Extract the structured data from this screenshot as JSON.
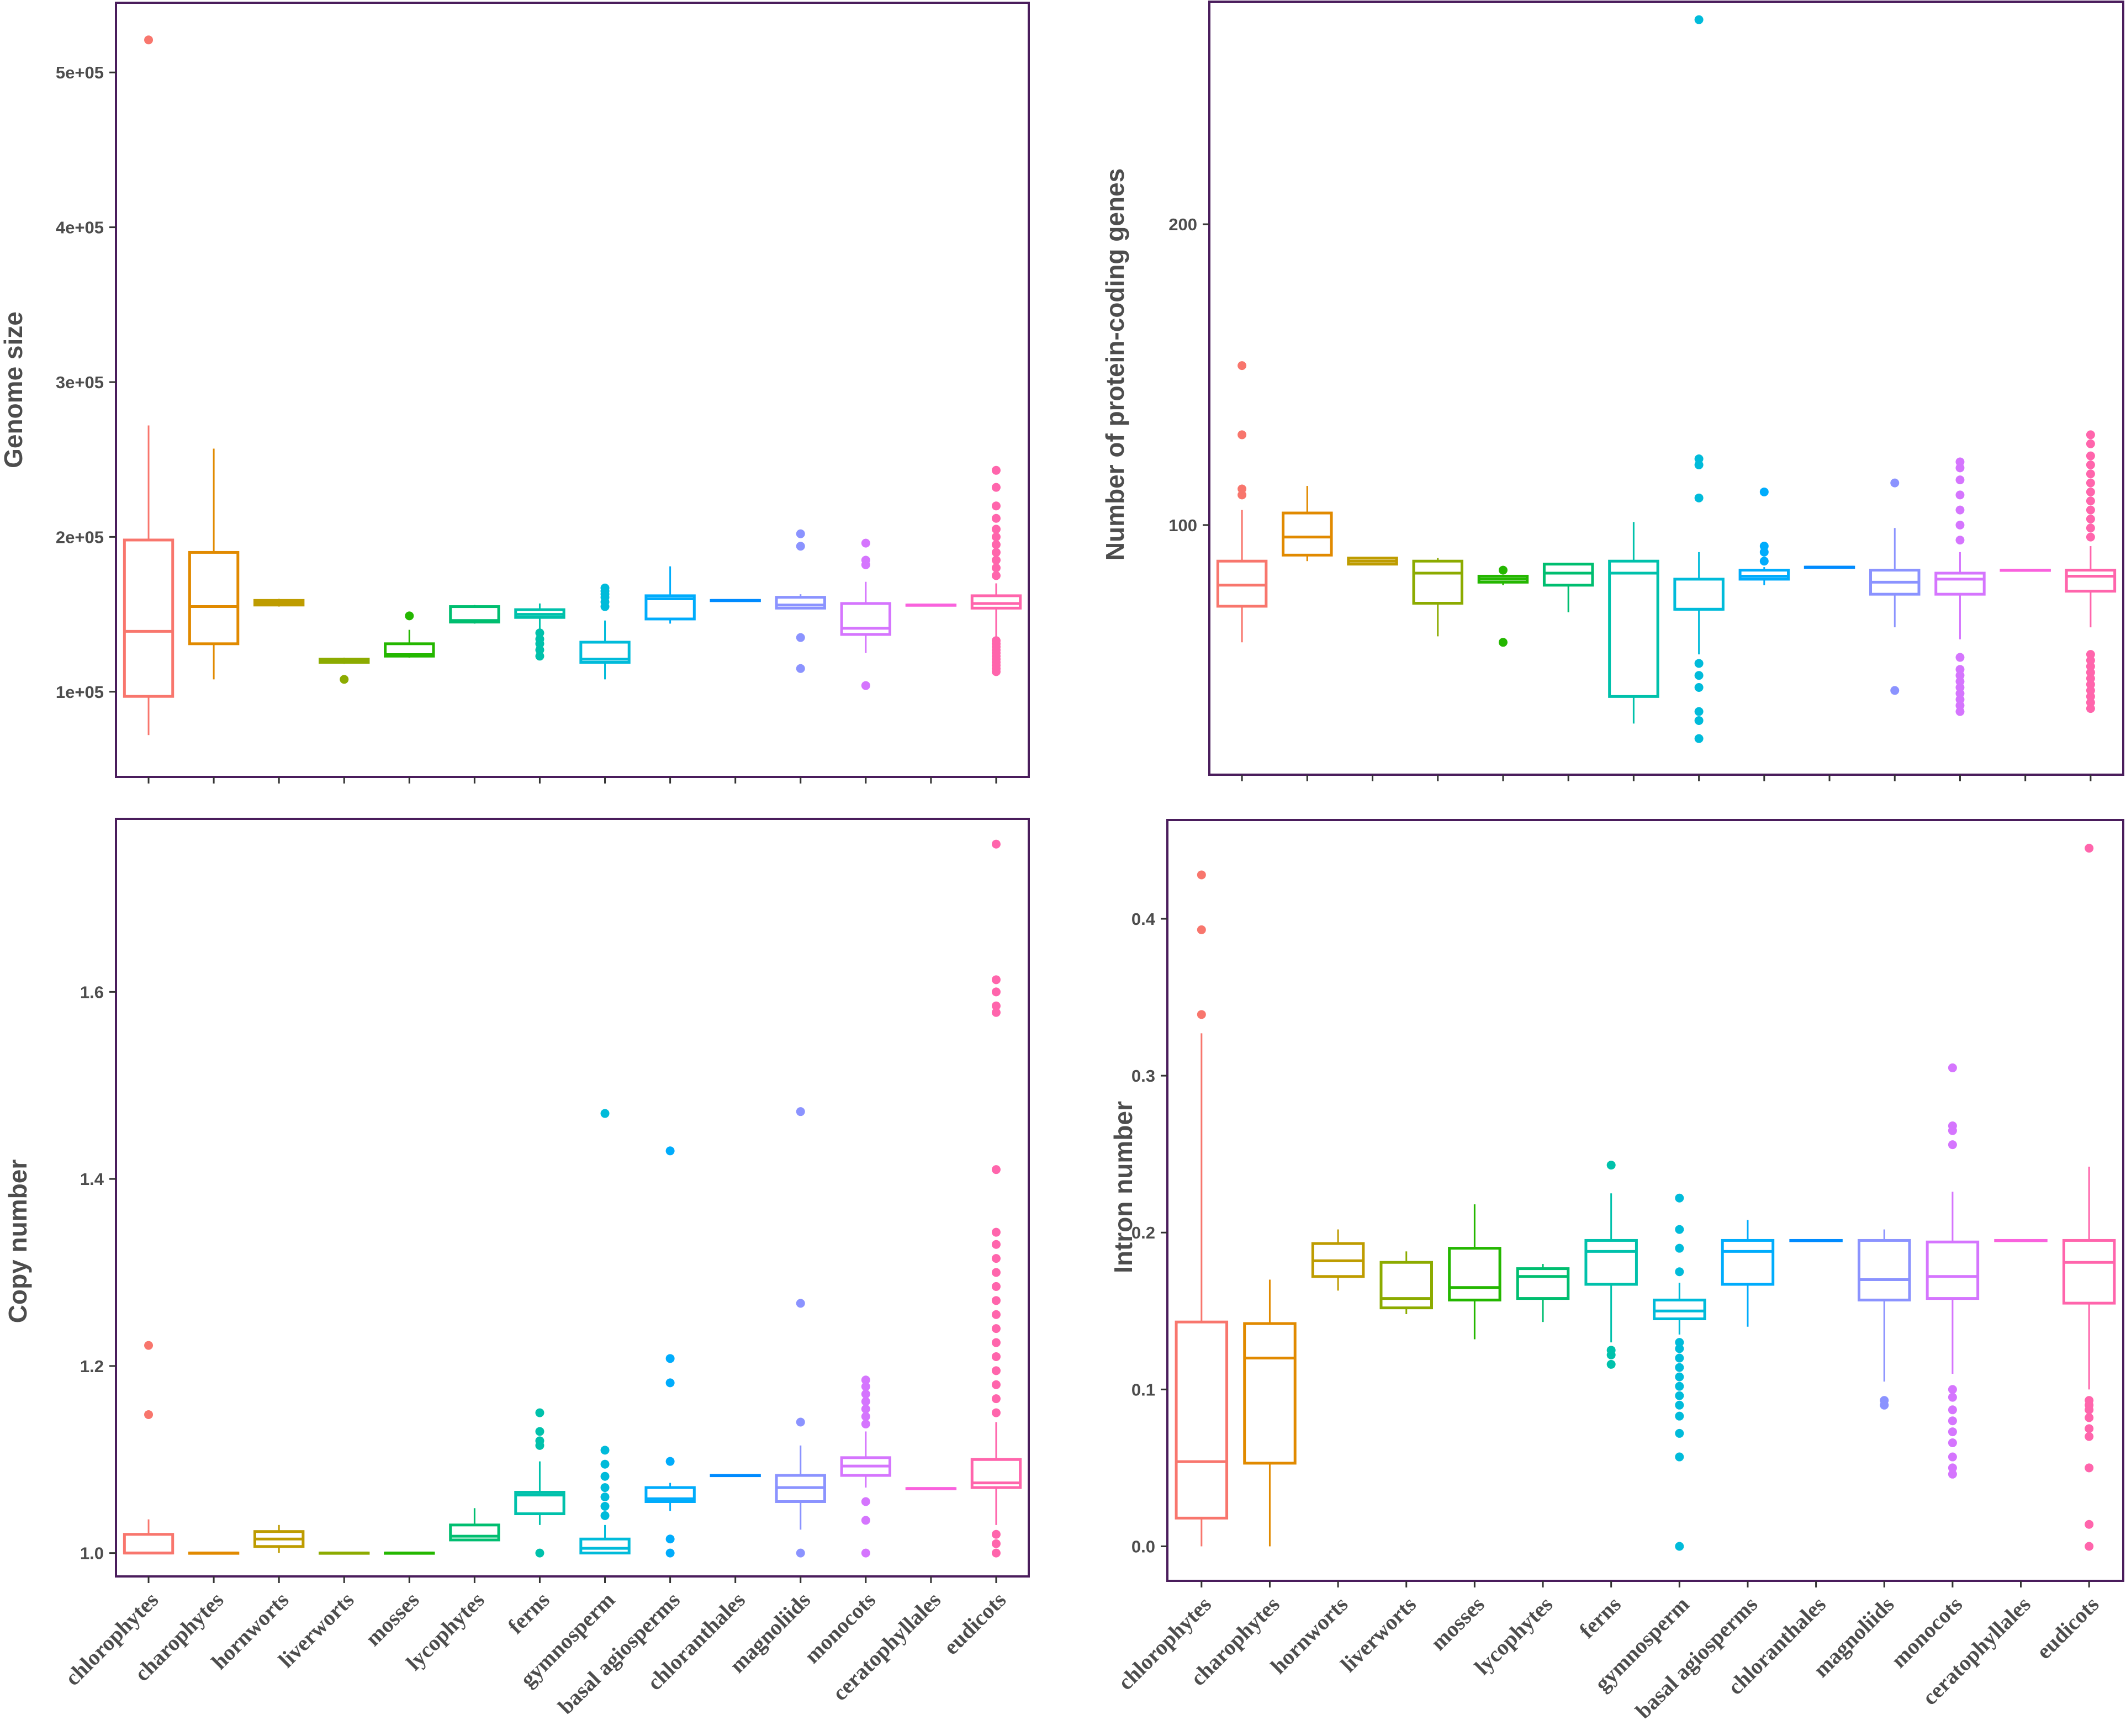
{
  "chart_data": [
    {
      "type": "box",
      "title": "",
      "xlabel": "",
      "ylabel": "Genome size",
      "ylim": [
        45000,
        545000
      ],
      "yticks": [
        100000,
        200000,
        300000,
        400000,
        500000
      ],
      "ytick_labels": [
        "1e+05",
        "2e+05",
        "3e+05",
        "4e+05",
        "5e+05"
      ],
      "categories": [
        "chlorophytes",
        "charophytes",
        "hornworts",
        "liverworts",
        "mosses",
        "lycophytes",
        "ferns",
        "gymnosperm",
        "basal agiosperms",
        "chloranthales",
        "magnoliids",
        "monocots",
        "ceratophyllales",
        "eudicots"
      ],
      "colors": [
        "#F8766D",
        "#E18A00",
        "#BE9C00",
        "#8CAB00",
        "#24B700",
        "#00BE70",
        "#00C1AB",
        "#00BBDA",
        "#00ACFC",
        "#008BFF",
        "#8B93FF",
        "#D575FE",
        "#F962DD",
        "#FF65AC"
      ],
      "boxes": [
        {
          "whislo": 72000,
          "q1": 97000,
          "med": 139000,
          "q3": 198000,
          "whishi": 272000,
          "outliers": [
            521000
          ]
        },
        {
          "whislo": 108000,
          "q1": 131000,
          "med": 155000,
          "q3": 190000,
          "whishi": 257000,
          "outliers": []
        },
        {
          "whislo": 155000,
          "q1": 156000,
          "med": 157500,
          "q3": 159000,
          "whishi": 160000,
          "outliers": []
        },
        {
          "whislo": 118000,
          "q1": 119000,
          "med": 120000,
          "q3": 121000,
          "whishi": 122000,
          "outliers": [
            108000
          ]
        },
        {
          "whislo": 122000,
          "q1": 123000,
          "med": 124000,
          "q3": 131000,
          "whishi": 140000,
          "outliers": [
            149000
          ]
        },
        {
          "whislo": 144000,
          "q1": 145000,
          "med": 146000,
          "q3": 155000,
          "whishi": 156000,
          "outliers": []
        },
        {
          "whislo": 138000,
          "q1": 148000,
          "med": 150000,
          "q3": 153000,
          "whishi": 157000,
          "outliers": [
            123000,
            127000,
            131000,
            134000,
            138000
          ]
        },
        {
          "whislo": 108000,
          "q1": 119000,
          "med": 121000,
          "q3": 132000,
          "whishi": 146000,
          "outliers": [
            155000,
            158000,
            161000,
            163000,
            165000,
            167000
          ]
        },
        {
          "whislo": 144000,
          "q1": 147000,
          "med": 160000,
          "q3": 162000,
          "whishi": 181000,
          "outliers": []
        },
        {
          "whislo": 159000,
          "q1": 159000,
          "med": 159000,
          "q3": 159000,
          "whishi": 159000,
          "outliers": []
        },
        {
          "whislo": 154000,
          "q1": 154000,
          "med": 156000,
          "q3": 161000,
          "whishi": 163000,
          "outliers": [
            115000,
            135000,
            194000,
            202000
          ]
        },
        {
          "whislo": 125000,
          "q1": 137000,
          "med": 141000,
          "q3": 157000,
          "whishi": 171000,
          "outliers": [
            104000,
            182000,
            185000,
            196000
          ]
        },
        {
          "whislo": 156000,
          "q1": 156000,
          "med": 156000,
          "q3": 156000,
          "whishi": 156000,
          "outliers": []
        },
        {
          "whislo": 135000,
          "q1": 154000,
          "med": 157000,
          "q3": 162000,
          "whishi": 170000,
          "outliers": [
            113000,
            115000,
            117000,
            119000,
            121000,
            123000,
            125000,
            127000,
            129000,
            131000,
            133000,
            175000,
            180000,
            185000,
            190000,
            195000,
            200000,
            205000,
            212000,
            220000,
            232000,
            243000
          ]
        }
      ]
    },
    {
      "type": "box",
      "title": "",
      "xlabel": "",
      "ylabel": "Number of protein-coding genes",
      "ylim": [
        17,
        274
      ],
      "yticks": [
        100,
        200
      ],
      "ytick_labels": [
        "100",
        "200"
      ],
      "categories": [
        "chlorophytes",
        "charophytes",
        "hornworts",
        "liverworts",
        "mosses",
        "lycophytes",
        "ferns",
        "gymnosperm",
        "basal agiosperms",
        "chloranthales",
        "magnoliids",
        "monocots",
        "ceratophyllales",
        "eudicots"
      ],
      "colors": [
        "#F8766D",
        "#E18A00",
        "#BE9C00",
        "#8CAB00",
        "#24B700",
        "#00BE70",
        "#00C1AB",
        "#00BBDA",
        "#00ACFC",
        "#008BFF",
        "#8B93FF",
        "#D575FE",
        "#F962DD",
        "#FF65AC"
      ],
      "boxes": [
        {
          "whislo": 61,
          "q1": 73,
          "med": 80,
          "q3": 88,
          "whishi": 105,
          "outliers": [
            110,
            112,
            130,
            153
          ]
        },
        {
          "whislo": 88,
          "q1": 90,
          "med": 96,
          "q3": 104,
          "whishi": 113,
          "outliers": []
        },
        {
          "whislo": 87,
          "q1": 87,
          "med": 88,
          "q3": 89,
          "whishi": 89,
          "outliers": []
        },
        {
          "whislo": 63,
          "q1": 74,
          "med": 84,
          "q3": 88,
          "whishi": 89,
          "outliers": []
        },
        {
          "whislo": 80,
          "q1": 81,
          "med": 82,
          "q3": 83,
          "whishi": 83,
          "outliers": [
            61,
            85
          ]
        },
        {
          "whislo": 71,
          "q1": 80,
          "med": 84,
          "q3": 87,
          "whishi": 87,
          "outliers": []
        },
        {
          "whislo": 34,
          "q1": 43,
          "med": 84,
          "q3": 88,
          "whishi": 101,
          "outliers": []
        },
        {
          "whislo": 57,
          "q1": 72,
          "med": 72,
          "q3": 82,
          "whishi": 91,
          "outliers": [
            29,
            35,
            38,
            46,
            50,
            54,
            109,
            120,
            122,
            268
          ]
        },
        {
          "whislo": 80,
          "q1": 82,
          "med": 83,
          "q3": 85,
          "whishi": 86,
          "outliers": [
            88,
            91,
            93,
            111
          ]
        },
        {
          "whislo": 86,
          "q1": 86,
          "med": 86,
          "q3": 86,
          "whishi": 86,
          "outliers": []
        },
        {
          "whislo": 66,
          "q1": 77,
          "med": 81,
          "q3": 85,
          "whishi": 99,
          "outliers": [
            45,
            114
          ]
        },
        {
          "whislo": 62,
          "q1": 77,
          "med": 82,
          "q3": 84,
          "whishi": 91,
          "outliers": [
            38,
            40,
            42,
            44,
            46,
            48,
            50,
            52,
            56,
            95,
            100,
            105,
            110,
            115,
            119,
            121
          ]
        },
        {
          "whislo": 85,
          "q1": 85,
          "med": 85,
          "q3": 85,
          "whishi": 85,
          "outliers": []
        },
        {
          "whislo": 66,
          "q1": 78,
          "med": 83,
          "q3": 85,
          "whishi": 93,
          "outliers": [
            39,
            41,
            43,
            45,
            47,
            49,
            51,
            53,
            55,
            57,
            96,
            99,
            102,
            105,
            108,
            111,
            114,
            117,
            120,
            123,
            127,
            130
          ]
        }
      ]
    },
    {
      "type": "box",
      "title": "",
      "xlabel": "",
      "ylabel": "Copy number",
      "ylim": [
        0.975,
        1.785
      ],
      "yticks": [
        1.0,
        1.2,
        1.4,
        1.6
      ],
      "ytick_labels": [
        "1.0",
        "1.2",
        "1.4",
        "1.6"
      ],
      "categories": [
        "chlorophytes",
        "charophytes",
        "hornworts",
        "liverworts",
        "mosses",
        "lycophytes",
        "ferns",
        "gymnosperm",
        "basal agiosperms",
        "chloranthales",
        "magnoliids",
        "monocots",
        "ceratophyllales",
        "eudicots"
      ],
      "colors": [
        "#F8766D",
        "#E18A00",
        "#BE9C00",
        "#8CAB00",
        "#24B700",
        "#00BE70",
        "#00C1AB",
        "#00BBDA",
        "#00ACFC",
        "#008BFF",
        "#8B93FF",
        "#D575FE",
        "#F962DD",
        "#FF65AC"
      ],
      "boxes": [
        {
          "whislo": 1.0,
          "q1": 1.0,
          "med": 1.0,
          "q3": 1.02,
          "whishi": 1.036,
          "outliers": [
            1.148,
            1.222
          ]
        },
        {
          "whislo": 1.0,
          "q1": 1.0,
          "med": 1.0,
          "q3": 1.0,
          "whishi": 1.0,
          "outliers": []
        },
        {
          "whislo": 1.0,
          "q1": 1.007,
          "med": 1.015,
          "q3": 1.023,
          "whishi": 1.03,
          "outliers": []
        },
        {
          "whislo": 1.0,
          "q1": 1.0,
          "med": 1.0,
          "q3": 1.0,
          "whishi": 1.0,
          "outliers": []
        },
        {
          "whislo": 1.0,
          "q1": 1.0,
          "med": 1.0,
          "q3": 1.0,
          "whishi": 1.0,
          "outliers": []
        },
        {
          "whislo": 1.014,
          "q1": 1.014,
          "med": 1.018,
          "q3": 1.03,
          "whishi": 1.048,
          "outliers": []
        },
        {
          "whislo": 1.03,
          "q1": 1.042,
          "med": 1.062,
          "q3": 1.065,
          "whishi": 1.098,
          "outliers": [
            1.0,
            1.115,
            1.12,
            1.13,
            1.15
          ]
        },
        {
          "whislo": 1.0,
          "q1": 1.0,
          "med": 1.005,
          "q3": 1.015,
          "whishi": 1.03,
          "outliers": [
            1.04,
            1.05,
            1.06,
            1.07,
            1.082,
            1.095,
            1.11,
            1.47
          ]
        },
        {
          "whislo": 1.045,
          "q1": 1.055,
          "med": 1.058,
          "q3": 1.07,
          "whishi": 1.075,
          "outliers": [
            1.0,
            1.015,
            1.098,
            1.182,
            1.208,
            1.43
          ]
        },
        {
          "whislo": 1.083,
          "q1": 1.083,
          "med": 1.083,
          "q3": 1.083,
          "whishi": 1.083,
          "outliers": []
        },
        {
          "whislo": 1.025,
          "q1": 1.055,
          "med": 1.07,
          "q3": 1.083,
          "whishi": 1.115,
          "outliers": [
            1.0,
            1.14,
            1.267,
            1.472
          ]
        },
        {
          "whislo": 1.07,
          "q1": 1.083,
          "med": 1.093,
          "q3": 1.102,
          "whishi": 1.13,
          "outliers": [
            1.0,
            1.035,
            1.055,
            1.138,
            1.146,
            1.154,
            1.162,
            1.17,
            1.178,
            1.185
          ]
        },
        {
          "whislo": 1.069,
          "q1": 1.069,
          "med": 1.069,
          "q3": 1.069,
          "whishi": 1.069,
          "outliers": []
        },
        {
          "whislo": 1.03,
          "q1": 1.07,
          "med": 1.075,
          "q3": 1.1,
          "whishi": 1.14,
          "outliers": [
            1.0,
            1.01,
            1.02,
            1.15,
            1.165,
            1.18,
            1.195,
            1.21,
            1.225,
            1.24,
            1.255,
            1.27,
            1.285,
            1.3,
            1.315,
            1.33,
            1.343,
            1.41,
            1.578,
            1.585,
            1.6,
            1.613,
            1.758
          ]
        }
      ]
    },
    {
      "type": "box",
      "title": "",
      "xlabel": "",
      "ylabel": "Intron number",
      "ylim": [
        -0.022,
        0.463
      ],
      "yticks": [
        0.0,
        0.1,
        0.2,
        0.3,
        0.4
      ],
      "ytick_labels": [
        "0.0",
        "0.1",
        "0.2",
        "0.3",
        "0.4"
      ],
      "categories": [
        "chlorophytes",
        "charophytes",
        "hornworts",
        "liverworts",
        "mosses",
        "lycophytes",
        "ferns",
        "gymnosperm",
        "basal agiosperms",
        "chloranthales",
        "magnoliids",
        "monocots",
        "ceratophyllales",
        "eudicots"
      ],
      "colors": [
        "#F8766D",
        "#E18A00",
        "#BE9C00",
        "#8CAB00",
        "#24B700",
        "#00BE70",
        "#00C1AB",
        "#00BBDA",
        "#00ACFC",
        "#008BFF",
        "#8B93FF",
        "#D575FE",
        "#F962DD",
        "#FF65AC"
      ],
      "boxes": [
        {
          "whislo": 0.0,
          "q1": 0.018,
          "med": 0.054,
          "q3": 0.143,
          "whishi": 0.327,
          "outliers": [
            0.339,
            0.393,
            0.428
          ]
        },
        {
          "whislo": 0.0,
          "q1": 0.053,
          "med": 0.12,
          "q3": 0.142,
          "whishi": 0.17,
          "outliers": []
        },
        {
          "whislo": 0.163,
          "q1": 0.172,
          "med": 0.182,
          "q3": 0.193,
          "whishi": 0.202,
          "outliers": []
        },
        {
          "whislo": 0.148,
          "q1": 0.152,
          "med": 0.158,
          "q3": 0.181,
          "whishi": 0.188,
          "outliers": []
        },
        {
          "whislo": 0.132,
          "q1": 0.157,
          "med": 0.165,
          "q3": 0.19,
          "whishi": 0.218,
          "outliers": []
        },
        {
          "whislo": 0.143,
          "q1": 0.158,
          "med": 0.172,
          "q3": 0.177,
          "whishi": 0.18,
          "outliers": []
        },
        {
          "whislo": 0.13,
          "q1": 0.167,
          "med": 0.188,
          "q3": 0.195,
          "whishi": 0.225,
          "outliers": [
            0.116,
            0.122,
            0.125,
            0.243
          ]
        },
        {
          "whislo": 0.135,
          "q1": 0.145,
          "med": 0.15,
          "q3": 0.157,
          "whishi": 0.168,
          "outliers": [
            0.0,
            0.057,
            0.072,
            0.083,
            0.09,
            0.096,
            0.102,
            0.108,
            0.114,
            0.12,
            0.126,
            0.13,
            0.175,
            0.19,
            0.202,
            0.222
          ]
        },
        {
          "whislo": 0.14,
          "q1": 0.167,
          "med": 0.188,
          "q3": 0.195,
          "whishi": 0.208,
          "outliers": []
        },
        {
          "whislo": 0.195,
          "q1": 0.195,
          "med": 0.195,
          "q3": 0.195,
          "whishi": 0.195,
          "outliers": []
        },
        {
          "whislo": 0.105,
          "q1": 0.157,
          "med": 0.17,
          "q3": 0.195,
          "whishi": 0.202,
          "outliers": [
            0.09,
            0.093
          ]
        },
        {
          "whislo": 0.11,
          "q1": 0.158,
          "med": 0.172,
          "q3": 0.194,
          "whishi": 0.226,
          "outliers": [
            0.046,
            0.05,
            0.057,
            0.066,
            0.073,
            0.08,
            0.087,
            0.095,
            0.1,
            0.256,
            0.265,
            0.268,
            0.305
          ]
        },
        {
          "whislo": 0.195,
          "q1": 0.195,
          "med": 0.195,
          "q3": 0.195,
          "whishi": 0.195,
          "outliers": []
        },
        {
          "whislo": 0.1,
          "q1": 0.155,
          "med": 0.181,
          "q3": 0.195,
          "whishi": 0.242,
          "outliers": [
            0.0,
            0.014,
            0.05,
            0.07,
            0.075,
            0.082,
            0.087,
            0.09,
            0.093,
            0.445
          ]
        }
      ]
    }
  ]
}
